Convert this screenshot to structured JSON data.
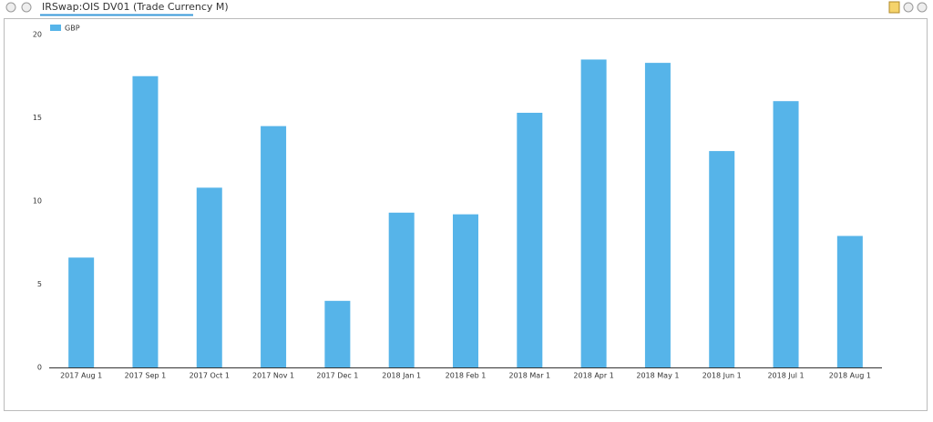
{
  "tab": {
    "title": "IRSwap:OIS DV01 (Trade Currency M)"
  },
  "chart_data": {
    "type": "bar",
    "categories": [
      "2017 Aug 1",
      "2017 Sep 1",
      "2017 Oct 1",
      "2017 Nov 1",
      "2017 Dec 1",
      "2018 Jan 1",
      "2018 Feb 1",
      "2018 Mar 1",
      "2018 Apr 1",
      "2018 May 1",
      "2018 Jun 1",
      "2018 Jul 1",
      "2018 Aug 1"
    ],
    "series": [
      {
        "name": "GBP",
        "color": "#56b4e9",
        "values": [
          6.6,
          17.5,
          10.8,
          14.5,
          4.0,
          9.3,
          9.2,
          15.3,
          18.5,
          18.3,
          13.0,
          16.0,
          7.9
        ]
      }
    ],
    "ylim": [
      0,
      20
    ],
    "yticks": [
      0,
      5,
      10,
      15,
      20
    ],
    "grid": false,
    "legend": "top-left"
  }
}
